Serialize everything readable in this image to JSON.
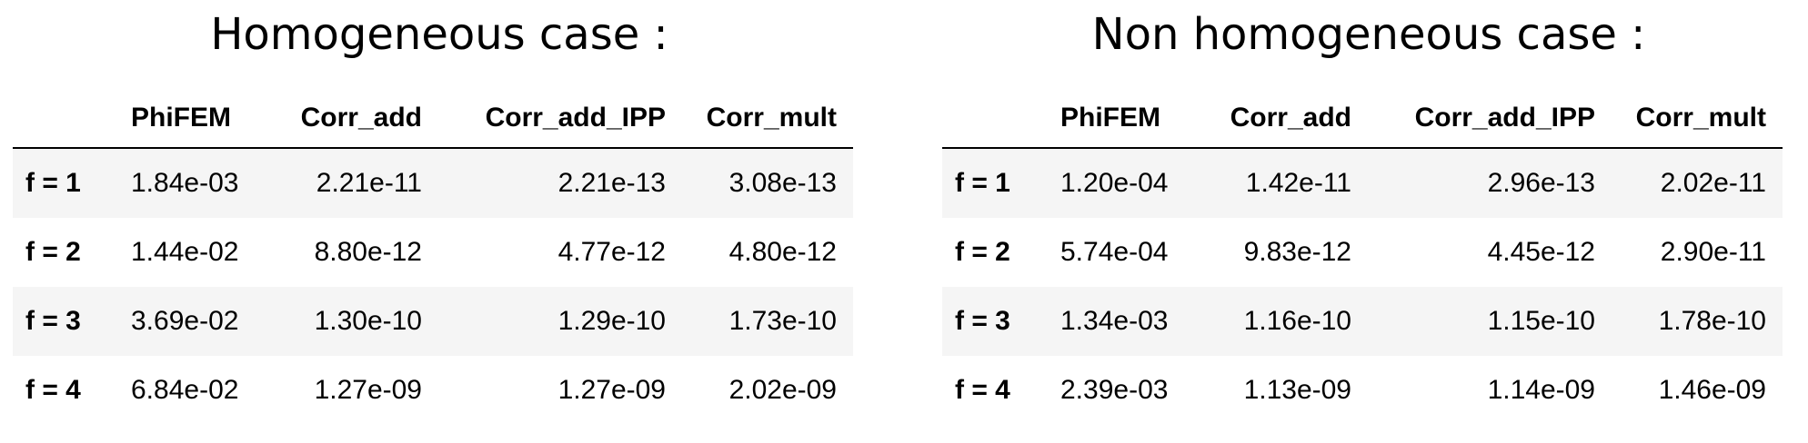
{
  "tables": [
    {
      "title": "Homogeneous case :",
      "columns": [
        "",
        "PhiFEM",
        "Corr_add",
        "Corr_add_IPP",
        "Corr_mult"
      ],
      "rows": [
        {
          "label": "f = 1",
          "values": [
            "1.84e-03",
            "2.21e-11",
            "2.21e-13",
            "3.08e-13"
          ]
        },
        {
          "label": "f = 2",
          "values": [
            "1.44e-02",
            "8.80e-12",
            "4.77e-12",
            "4.80e-12"
          ]
        },
        {
          "label": "f = 3",
          "values": [
            "3.69e-02",
            "1.30e-10",
            "1.29e-10",
            "1.73e-10"
          ]
        },
        {
          "label": "f = 4",
          "values": [
            "6.84e-02",
            "1.27e-09",
            "1.27e-09",
            "2.02e-09"
          ]
        }
      ]
    },
    {
      "title": "Non homogeneous case :",
      "columns": [
        "",
        "PhiFEM",
        "Corr_add",
        "Corr_add_IPP",
        "Corr_mult"
      ],
      "rows": [
        {
          "label": "f = 1",
          "values": [
            "1.20e-04",
            "1.42e-11",
            "2.96e-13",
            "2.02e-11"
          ]
        },
        {
          "label": "f = 2",
          "values": [
            "5.74e-04",
            "9.83e-12",
            "4.45e-12",
            "2.90e-11"
          ]
        },
        {
          "label": "f = 3",
          "values": [
            "1.34e-03",
            "1.16e-10",
            "1.15e-10",
            "1.78e-10"
          ]
        },
        {
          "label": "f = 4",
          "values": [
            "2.39e-03",
            "1.13e-09",
            "1.14e-09",
            "1.46e-09"
          ]
        }
      ]
    }
  ]
}
